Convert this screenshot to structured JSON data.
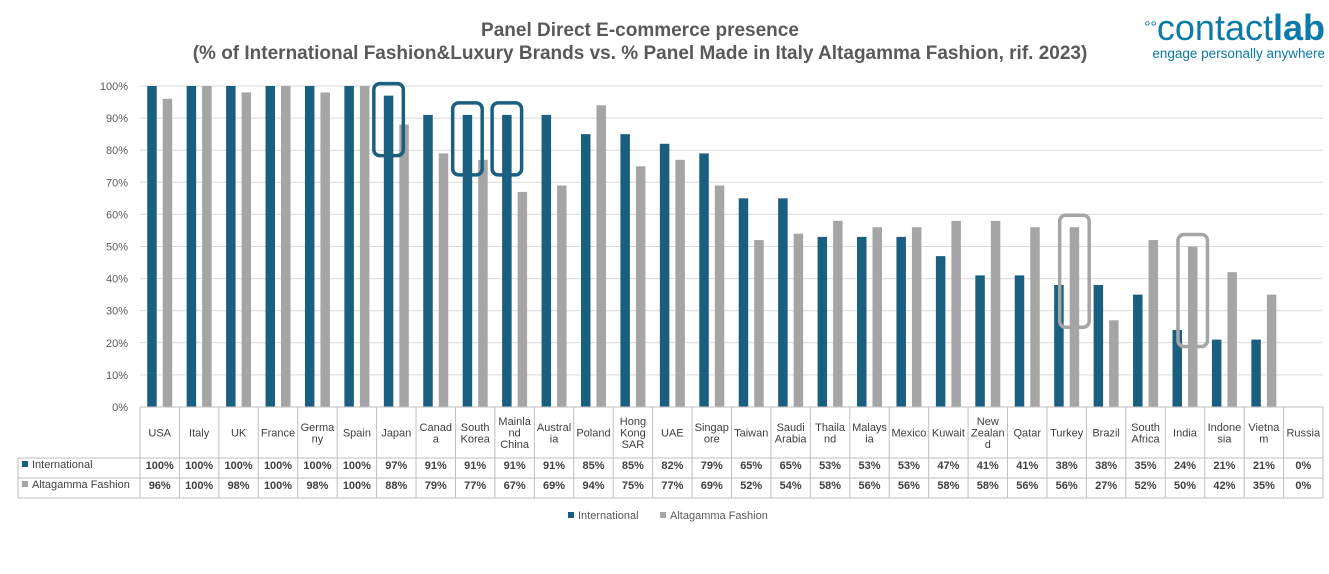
{
  "chart_data": {
    "type": "bar",
    "title": "Panel Direct E-commerce presence",
    "subtitle": "(% of International Fashion&Luxury Brands vs. % Panel Made in Italy Altagamma Fashion, rif. 2023)",
    "categories": [
      [
        "USA"
      ],
      [
        "Italy"
      ],
      [
        "UK"
      ],
      [
        "France"
      ],
      [
        "Germa",
        "ny"
      ],
      [
        "Spain"
      ],
      [
        "Japan"
      ],
      [
        "Canad",
        "a"
      ],
      [
        "South",
        "Korea"
      ],
      [
        "Mainla",
        "nd",
        "China"
      ],
      [
        "Austral",
        "ia"
      ],
      [
        "Poland"
      ],
      [
        "Hong",
        "Kong",
        "SAR"
      ],
      [
        "UAE"
      ],
      [
        "Singap",
        "ore"
      ],
      [
        "Taiwan"
      ],
      [
        "Saudi",
        "Arabia"
      ],
      [
        "Thaila",
        "nd"
      ],
      [
        "Malays",
        "ia"
      ],
      [
        "Mexico"
      ],
      [
        "Kuwait"
      ],
      [
        "New",
        "Zealan",
        "d"
      ],
      [
        "Qatar"
      ],
      [
        "Turkey"
      ],
      [
        "Brazil"
      ],
      [
        "South",
        "Africa"
      ],
      [
        "India"
      ],
      [
        "Indone",
        "sia"
      ],
      [
        "Vietna",
        "m"
      ],
      [
        "Russia"
      ]
    ],
    "series": [
      {
        "name": "International",
        "color": "#1b5f80",
        "values": [
          100,
          100,
          100,
          100,
          100,
          100,
          97,
          91,
          91,
          91,
          91,
          85,
          85,
          82,
          79,
          65,
          65,
          53,
          53,
          53,
          47,
          41,
          41,
          38,
          38,
          35,
          24,
          21,
          21,
          0
        ],
        "labels": [
          "100%",
          "100%",
          "100%",
          "100%",
          "100%",
          "100%",
          "97%",
          "91%",
          "91%",
          "91%",
          "91%",
          "85%",
          "85%",
          "82%",
          "79%",
          "65%",
          "65%",
          "53%",
          "53%",
          "53%",
          "47%",
          "41%",
          "41%",
          "38%",
          "38%",
          "35%",
          "24%",
          "21%",
          "21%",
          "0%"
        ]
      },
      {
        "name": "Altagamma Fashion",
        "color": "#a5a5a5",
        "values": [
          96,
          100,
          98,
          100,
          98,
          100,
          88,
          79,
          77,
          67,
          69,
          94,
          75,
          77,
          69,
          52,
          54,
          58,
          56,
          56,
          58,
          58,
          56,
          56,
          27,
          52,
          50,
          42,
          35,
          0
        ],
        "labels": [
          "96%",
          "100%",
          "98%",
          "100%",
          "98%",
          "100%",
          "88%",
          "79%",
          "77%",
          "67%",
          "69%",
          "94%",
          "75%",
          "77%",
          "69%",
          "52%",
          "54%",
          "58%",
          "56%",
          "56%",
          "58%",
          "58%",
          "56%",
          "56%",
          "27%",
          "52%",
          "50%",
          "42%",
          "35%",
          "0%"
        ]
      }
    ],
    "ylim": [
      0,
      100
    ],
    "yticks": [
      "0%",
      "10%",
      "20%",
      "30%",
      "40%",
      "50%",
      "60%",
      "70%",
      "80%",
      "90%",
      "100%"
    ],
    "legend_position": "bottom",
    "highlights": [
      {
        "categories": [
          "Japan"
        ],
        "color": "#1b5f80"
      },
      {
        "categories": [
          "South Korea"
        ],
        "color": "#1b5f80"
      },
      {
        "categories": [
          "Mainland China"
        ],
        "color": "#1b5f80"
      },
      {
        "categories": [
          "Turkey"
        ],
        "color": "#a5a5a5"
      },
      {
        "categories": [
          "India"
        ],
        "color": "#a5a5a5"
      }
    ]
  },
  "logo": {
    "brand_light": "contact",
    "brand_bold": "lab",
    "tagline": "engage personally anywhere"
  }
}
